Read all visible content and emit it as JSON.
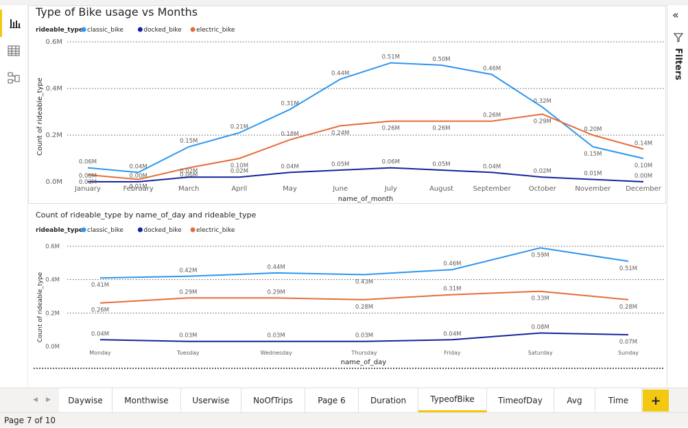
{
  "chart1": {
    "title": "Type of Bike usage vs Months",
    "legend_title": "rideable_type",
    "xlabel": "name_of_month",
    "ylabel": "Count of rideable_type",
    "yticks": [
      "0.0M",
      "0.2M",
      "0.4M",
      "0.6M"
    ],
    "categories": [
      "January",
      "February",
      "March",
      "April",
      "May",
      "June",
      "July",
      "August",
      "September",
      "October",
      "November",
      "December"
    ]
  },
  "chart2": {
    "title": "Count of rideable_type by name_of_day and rideable_type",
    "legend_title": "rideable_type",
    "xlabel": "name_of_day",
    "ylabel": "Count of rideable_type",
    "yticks": [
      "0.0M",
      "0.2M",
      "0.4M",
      "0.6M"
    ],
    "categories": [
      "Monday",
      "Tuesday",
      "Wednesday",
      "Thursday",
      "Friday",
      "Saturday",
      "Sunday"
    ]
  },
  "chart_data": [
    {
      "type": "line",
      "title": "Type of Bike usage vs Months",
      "xlabel": "name_of_month",
      "ylabel": "Count of rideable_type",
      "ylim": [
        0,
        0.6
      ],
      "grid": true,
      "legend": "top-left",
      "categories": [
        "January",
        "February",
        "March",
        "April",
        "May",
        "June",
        "July",
        "August",
        "September",
        "October",
        "November",
        "December"
      ],
      "series": [
        {
          "name": "classic_bike",
          "color": "#2b95f0",
          "values": [
            0.06,
            0.04,
            0.15,
            0.21,
            0.31,
            0.44,
            0.51,
            0.5,
            0.46,
            0.32,
            0.15,
            0.1
          ],
          "labels": [
            "0.06M",
            "0.04M",
            "0.15M",
            "0.21M",
            "0.31M",
            "0.44M",
            "0.51M",
            "0.50M",
            "0.46M",
            "0.32M",
            "0.15M",
            "0.10M"
          ]
        },
        {
          "name": "docked_bike",
          "color": "#12239e",
          "values": [
            0.0,
            0.0,
            0.02,
            0.02,
            0.04,
            0.05,
            0.06,
            0.05,
            0.04,
            0.02,
            0.01,
            0.0
          ],
          "labels": [
            "0.00M",
            "0.00M",
            "0.02M",
            "0.02M",
            "0.04M",
            "0.05M",
            "0.06M",
            "0.05M",
            "0.04M",
            "0.02M",
            "0.01M",
            "0.00M"
          ]
        },
        {
          "name": "electric_bike",
          "color": "#e66c37",
          "values": [
            0.03,
            0.01,
            0.06,
            0.1,
            0.18,
            0.24,
            0.26,
            0.26,
            0.26,
            0.29,
            0.2,
            0.14
          ],
          "labels": [
            "0.03M",
            "0.01M",
            "0.06M",
            "0.10M",
            "0.18M",
            "0.24M",
            "0.26M",
            "0.26M",
            "0.26M",
            "0.29M",
            "0.20M",
            "0.14M"
          ]
        }
      ]
    },
    {
      "type": "line",
      "title": "Count of rideable_type by name_of_day and rideable_type",
      "xlabel": "name_of_day",
      "ylabel": "Count of rideable_type",
      "ylim": [
        0,
        0.6
      ],
      "grid": true,
      "legend": "top-left",
      "categories": [
        "Monday",
        "Tuesday",
        "Wednesday",
        "Thursday",
        "Friday",
        "Saturday",
        "Sunday"
      ],
      "series": [
        {
          "name": "classic_bike",
          "color": "#2b95f0",
          "values": [
            0.41,
            0.42,
            0.44,
            0.43,
            0.46,
            0.59,
            0.51
          ],
          "labels": [
            "0.41M",
            "0.42M",
            "0.44M",
            "0.43M",
            "0.46M",
            "0.59M",
            "0.51M"
          ]
        },
        {
          "name": "docked_bike",
          "color": "#12239e",
          "values": [
            0.04,
            0.03,
            0.03,
            0.03,
            0.04,
            0.08,
            0.07
          ],
          "labels": [
            "0.04M",
            "0.03M",
            "0.03M",
            "0.03M",
            "0.04M",
            "0.08M",
            "0.07M"
          ]
        },
        {
          "name": "electric_bike",
          "color": "#e66c37",
          "values": [
            0.26,
            0.29,
            0.29,
            0.28,
            0.31,
            0.33,
            0.28
          ],
          "labels": [
            "0.26M",
            "0.29M",
            "0.29M",
            "0.28M",
            "0.31M",
            "0.33M",
            "0.28M"
          ]
        }
      ]
    }
  ],
  "tabs": [
    {
      "label": "Daywise"
    },
    {
      "label": "Monthwise"
    },
    {
      "label": "Userwise"
    },
    {
      "label": "NoOfTrips"
    },
    {
      "label": "Page 6"
    },
    {
      "label": "Duration"
    },
    {
      "label": "TypeofBike",
      "active": true
    },
    {
      "label": "TimeofDay"
    },
    {
      "label": "Avg"
    },
    {
      "label": "Time"
    }
  ],
  "add_tab": "+",
  "right_pane": {
    "collapse": "«",
    "filters_label": "Filters"
  },
  "status": {
    "page": "Page 7 of 10"
  },
  "icons": {
    "report": "report-view-icon",
    "table": "table-view-icon",
    "model": "model-view-icon",
    "filter": "filter-icon"
  }
}
